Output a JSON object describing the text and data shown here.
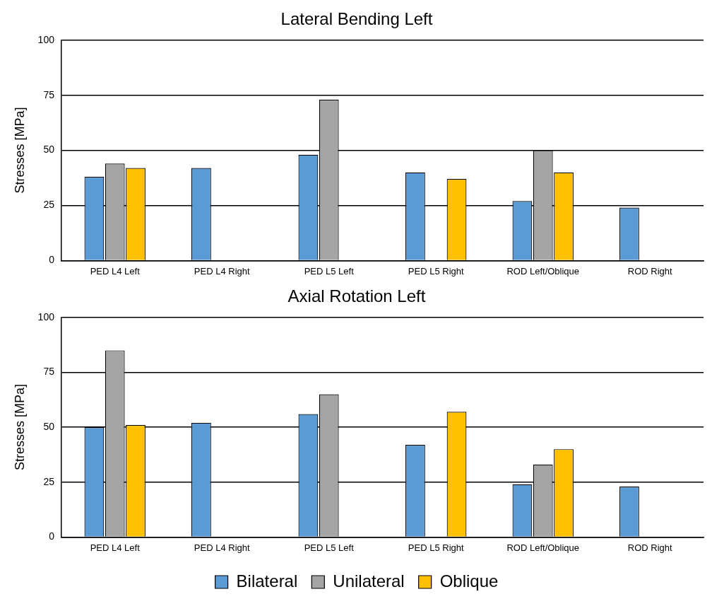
{
  "chart_data": [
    {
      "type": "bar",
      "title": "Lateral Bending Left",
      "ylabel": "Stresses [MPa]",
      "categories": [
        "PED L4 Left",
        "PED L4 Right",
        "PED L5 Left",
        "PED L5 Right",
        "ROD Left/Oblique",
        "ROD Right"
      ],
      "series": [
        {
          "color": "#5b9bd5",
          "values": [
            38,
            42,
            48,
            40,
            27,
            24
          ]
        },
        {
          "color": "#a5a5a5",
          "values": [
            44,
            null,
            73,
            null,
            50,
            null
          ]
        },
        {
          "color": "#ffc000",
          "values": [
            42,
            null,
            null,
            37,
            40,
            null
          ]
        }
      ],
      "ylim": [
        0,
        100
      ],
      "yticks": [
        0,
        25,
        50,
        75,
        100
      ],
      "grid": "y",
      "legend": false
    },
    {
      "type": "bar",
      "title": "Axial Rotation Left",
      "ylabel": "Stresses [MPa]",
      "categories": [
        "PED L4 Left",
        "PED L4 Right",
        "PED L5 Left",
        "PED L5 Right",
        "ROD Left/Oblique",
        "ROD Right"
      ],
      "series": [
        {
          "name": "Bilateral",
          "color": "#5b9bd5",
          "values": [
            50,
            52,
            56,
            42,
            24,
            23
          ]
        },
        {
          "name": "Unilateral",
          "color": "#a5a5a5",
          "values": [
            85,
            null,
            65,
            null,
            33,
            null
          ]
        },
        {
          "name": "Oblique",
          "color": "#ffc000",
          "values": [
            51,
            null,
            null,
            57,
            40,
            null
          ]
        }
      ],
      "ylim": [
        0,
        100
      ],
      "yticks": [
        0,
        25,
        50,
        75,
        100
      ],
      "grid": "y",
      "legend": "bottom"
    }
  ]
}
